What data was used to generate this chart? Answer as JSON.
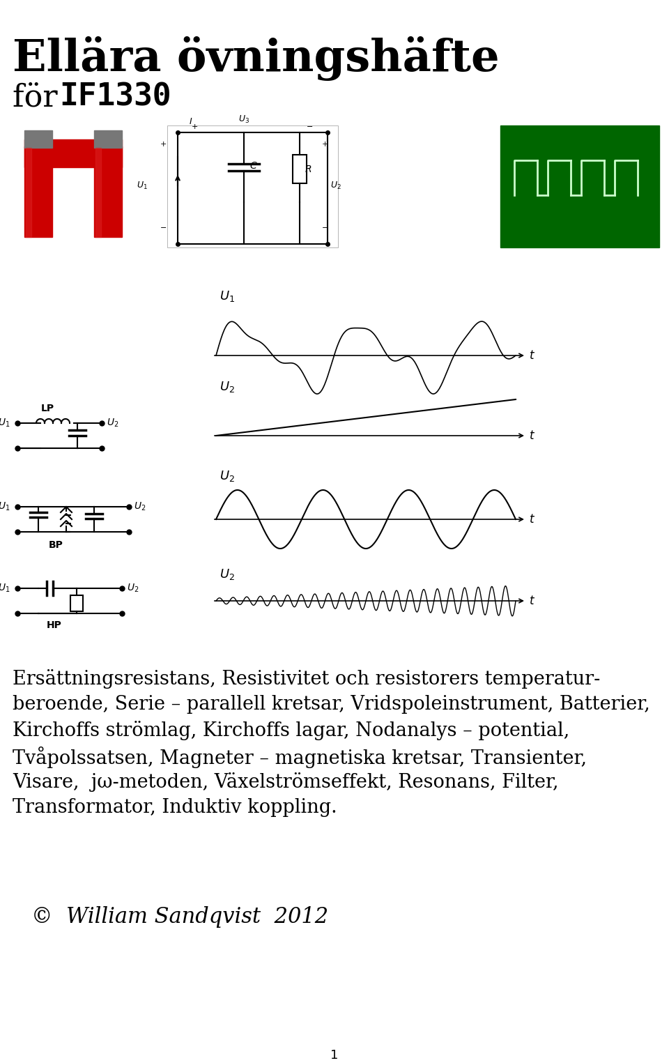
{
  "title_line1": "Ellära övningshäfte",
  "title_line2_prefix": "för ",
  "title_line2_code": "IF1330",
  "body_text_line1": "Ersättningsresistans, Resistivitet och resistorers temperatur-",
  "body_text_line2": "beroende, Serie – parallell kretsar, Vridspoleinstrument, Batterier,",
  "body_text_line3": "Kirchoffs strömlag, Kirchoffs lagar, Nodanalys – potential,",
  "body_text_line4": "Tvåpolssatsen, Magneter – magnetiska kretsar, Transienter,",
  "body_text_line5": "Visare,  jω-metoden, Växelströmseffekt, Resonans, Filter,",
  "body_text_line6": "Transformator, Induktiv koppling.",
  "author_text": "©  William Sandqvist  2012",
  "page_number": "1",
  "bg_color": "#ffffff",
  "text_color": "#000000"
}
